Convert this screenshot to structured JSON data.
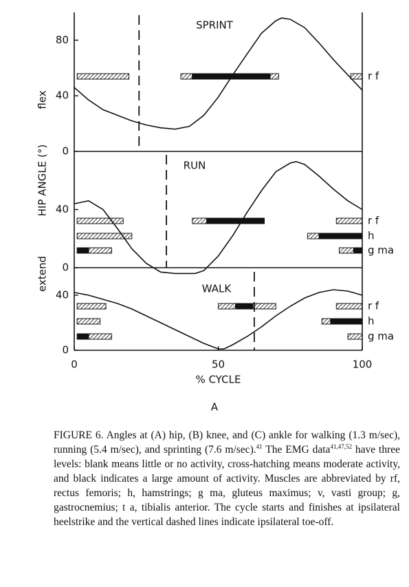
{
  "chart_data": [
    {
      "type": "line",
      "annotation": "SPRINT",
      "color": "#111",
      "x": [
        0,
        5,
        10,
        15,
        20,
        25,
        30,
        35,
        40,
        45,
        50,
        55,
        60,
        65,
        70,
        72,
        75,
        80,
        85,
        90,
        95,
        100
      ],
      "values": [
        46,
        37,
        30,
        26,
        22,
        19,
        17,
        16,
        18,
        26,
        39,
        55,
        70,
        85,
        94,
        96,
        95,
        89,
        78,
        66,
        55,
        44
      ],
      "xlim": [
        0,
        100
      ],
      "ylim": [
        0,
        100
      ],
      "yticks": [
        0,
        40,
        80
      ],
      "toe_off": 22.5,
      "emg": [
        {
          "label": "r f",
          "segments": [
            {
              "start": 1,
              "end": 19,
              "fill": "hatch"
            },
            {
              "start": 37,
              "end": 41,
              "fill": "hatch"
            },
            {
              "start": 41,
              "end": 68,
              "fill": "black"
            },
            {
              "start": 68,
              "end": 71,
              "fill": "hatch"
            },
            {
              "start": 96,
              "end": 100,
              "fill": "hatch"
            }
          ]
        }
      ]
    },
    {
      "type": "line",
      "annotation": "RUN",
      "color": "#111",
      "x": [
        0,
        5,
        10,
        15,
        20,
        25,
        30,
        35,
        42,
        45,
        50,
        55,
        60,
        65,
        70,
        75,
        77,
        80,
        85,
        90,
        95,
        100
      ],
      "values": [
        44,
        46,
        40,
        27,
        13,
        3,
        -3,
        -4,
        -4,
        -2,
        8,
        22,
        38,
        53,
        66,
        72,
        73,
        71,
        63,
        54,
        46,
        40
      ],
      "xlim": [
        0,
        100
      ],
      "ylim": [
        0,
        80
      ],
      "yticks": [
        0,
        40
      ],
      "toe_off": 32,
      "emg": [
        {
          "label": "r f",
          "segments": [
            {
              "start": 1,
              "end": 17,
              "fill": "hatch"
            },
            {
              "start": 41,
              "end": 46,
              "fill": "hatch"
            },
            {
              "start": 46,
              "end": 66,
              "fill": "black"
            },
            {
              "start": 91,
              "end": 100,
              "fill": "hatch"
            }
          ]
        },
        {
          "label": "h",
          "segments": [
            {
              "start": 1,
              "end": 20,
              "fill": "hatch"
            },
            {
              "start": 81,
              "end": 85,
              "fill": "hatch"
            },
            {
              "start": 85,
              "end": 100,
              "fill": "black"
            }
          ]
        },
        {
          "label": "g ma",
          "segments": [
            {
              "start": 1,
              "end": 5,
              "fill": "black"
            },
            {
              "start": 5,
              "end": 13,
              "fill": "hatch"
            },
            {
              "start": 92,
              "end": 97,
              "fill": "hatch"
            },
            {
              "start": 97,
              "end": 100,
              "fill": "black"
            }
          ]
        }
      ]
    },
    {
      "type": "line",
      "annotation": "WALK",
      "color": "#111",
      "x": [
        0,
        5,
        10,
        15,
        20,
        25,
        30,
        35,
        40,
        45,
        50,
        52,
        55,
        60,
        65,
        70,
        75,
        80,
        85,
        90,
        95,
        100
      ],
      "values": [
        42,
        40,
        37,
        34,
        30,
        25,
        20,
        15,
        10,
        5,
        1,
        1,
        4,
        10,
        17,
        25,
        32,
        38,
        42,
        44,
        43,
        40
      ],
      "xlim": [
        0,
        100
      ],
      "ylim": [
        0,
        60
      ],
      "yticks": [
        0,
        40
      ],
      "xticks": [
        0,
        50,
        100
      ],
      "xlabel": "% CYCLE",
      "toe_off": 62.5,
      "emg": [
        {
          "label": "r f",
          "segments": [
            {
              "start": 1,
              "end": 11,
              "fill": "hatch"
            },
            {
              "start": 50,
              "end": 56,
              "fill": "hatch"
            },
            {
              "start": 56,
              "end": 62,
              "fill": "black"
            },
            {
              "start": 62,
              "end": 70,
              "fill": "hatch"
            },
            {
              "start": 91,
              "end": 100,
              "fill": "hatch"
            }
          ]
        },
        {
          "label": "h",
          "segments": [
            {
              "start": 1,
              "end": 9,
              "fill": "hatch"
            },
            {
              "start": 86,
              "end": 89,
              "fill": "hatch"
            },
            {
              "start": 89,
              "end": 100,
              "fill": "black"
            }
          ]
        },
        {
          "label": "g ma",
          "segments": [
            {
              "start": 1,
              "end": 5,
              "fill": "black"
            },
            {
              "start": 5,
              "end": 13,
              "fill": "hatch"
            },
            {
              "start": 95,
              "end": 100,
              "fill": "hatch"
            }
          ]
        }
      ]
    }
  ],
  "figure": {
    "y_label": "HIP ANGLE (°)",
    "flex": "flex",
    "extend": "extend",
    "label": "A",
    "caption": [
      "FIGURE 6.   Angles at (A) hip, (B) knee, and (C) ankle for walking (1.3 m/sec), running (5.4 m/sec), and sprinting (7.6 m/sec).",
      "41",
      " The EMG data",
      "41,47,52",
      " have three levels: blank means little or no activity, cross-hatching means moderate activity, and black indicates a large amount of activity. Muscles are abbreviated by rf, rectus femoris; h, hamstrings; g ma, gluteus maximus; v, vasti group; g, gastrocnemius; t a, tibialis anterior. The cycle starts and finishes at ipsilateral heelstrike and the vertical dashed lines indicate ipsilateral toe-off."
    ]
  }
}
